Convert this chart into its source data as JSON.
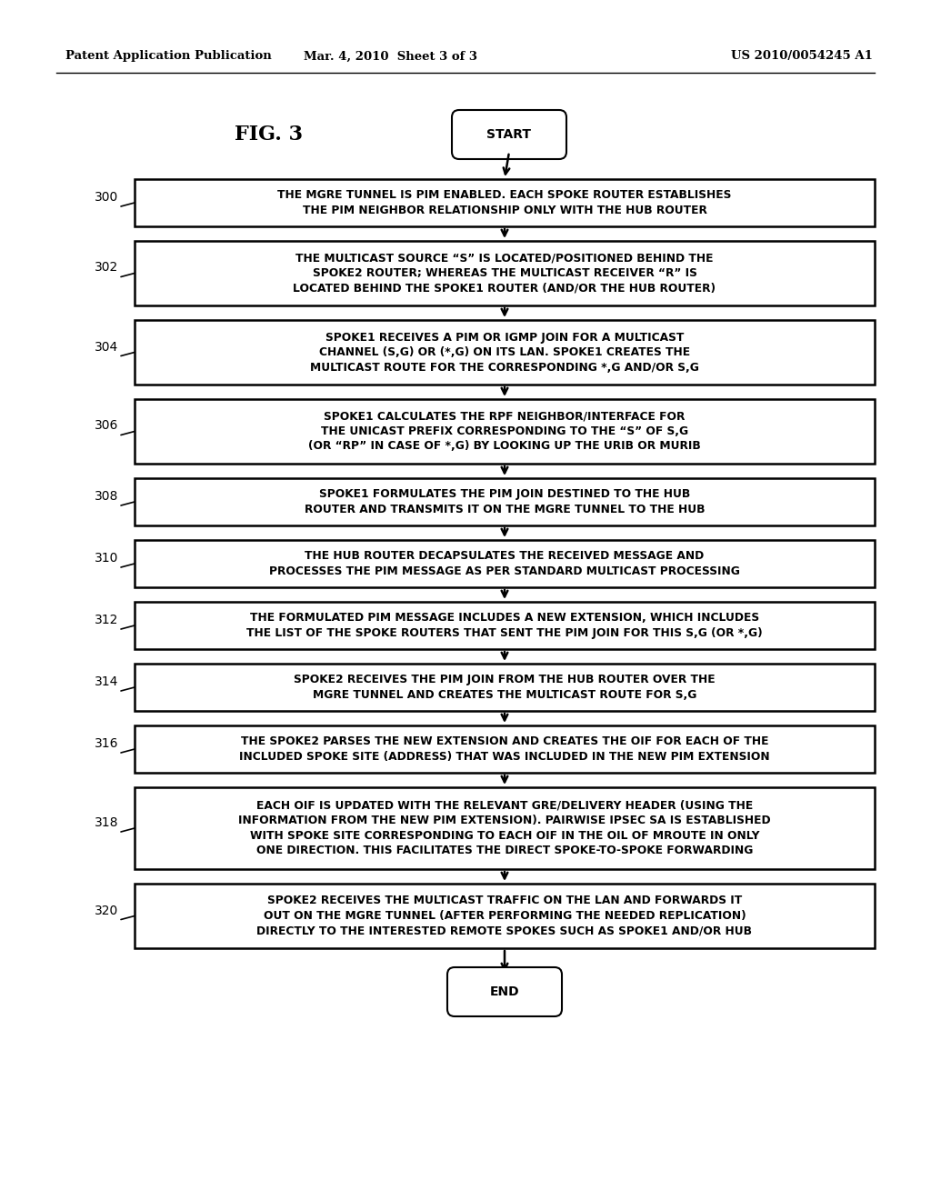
{
  "header_left": "Patent Application Publication",
  "header_mid": "Mar. 4, 2010  Sheet 3 of 3",
  "header_right": "US 2010/0054245 A1",
  "fig_label": "FIG. 3",
  "start_label": "START",
  "end_label": "END",
  "background_color": "#ffffff",
  "box_facecolor": "#ffffff",
  "box_edgecolor": "#000000",
  "text_color": "#000000",
  "steps": [
    {
      "number": "300",
      "text": "THE MGRE TUNNEL IS PIM ENABLED. EACH SPOKE ROUTER ESTABLISHES\nTHE PIM NEIGHBOR RELATIONSHIP ONLY WITH THE HUB ROUTER",
      "nlines": 2
    },
    {
      "number": "302",
      "text": "THE MULTICAST SOURCE “S” IS LOCATED/POSITIONED BEHIND THE\nSPOKE2 ROUTER; WHEREAS THE MULTICAST RECEIVER “R” IS\nLOCATED BEHIND THE SPOKE1 ROUTER (AND/OR THE HUB ROUTER)",
      "nlines": 3
    },
    {
      "number": "304",
      "text": "SPOKE1 RECEIVES A PIM OR IGMP JOIN FOR A MULTICAST\nCHANNEL (S,G) OR (*,G) ON ITS LAN. SPOKE1 CREATES THE\nMULTICAST ROUTE FOR THE CORRESPONDING *,G AND/OR S,G",
      "nlines": 3
    },
    {
      "number": "306",
      "text": "SPOKE1 CALCULATES THE RPF NEIGHBOR/INTERFACE FOR\nTHE UNICAST PREFIX CORRESPONDING TO THE “S” OF S,G\n(OR “RP” IN CASE OF *,G) BY LOOKING UP THE URIB OR MURIB",
      "nlines": 3
    },
    {
      "number": "308",
      "text": "SPOKE1 FORMULATES THE PIM JOIN DESTINED TO THE HUB\nROUTER AND TRANSMITS IT ON THE MGRE TUNNEL TO THE HUB",
      "nlines": 2
    },
    {
      "number": "310",
      "text": "THE HUB ROUTER DECAPSULATES THE RECEIVED MESSAGE AND\nPROCESSES THE PIM MESSAGE AS PER STANDARD MULTICAST PROCESSING",
      "nlines": 2
    },
    {
      "number": "312",
      "text": "THE FORMULATED PIM MESSAGE INCLUDES A NEW EXTENSION, WHICH INCLUDES\nTHE LIST OF THE SPOKE ROUTERS THAT SENT THE PIM JOIN FOR THIS S,G (OR *,G)",
      "nlines": 2
    },
    {
      "number": "314",
      "text": "SPOKE2 RECEIVES THE PIM JOIN FROM THE HUB ROUTER OVER THE\nMGRE TUNNEL AND CREATES THE MULTICAST ROUTE FOR S,G",
      "nlines": 2
    },
    {
      "number": "316",
      "text": "THE SPOKE2 PARSES THE NEW EXTENSION AND CREATES THE OIF FOR EACH OF THE\nINCLUDED SPOKE SITE (ADDRESS) THAT WAS INCLUDED IN THE NEW PIM EXTENSION",
      "nlines": 2
    },
    {
      "number": "318",
      "text": "EACH OIF IS UPDATED WITH THE RELEVANT GRE/DELIVERY HEADER (USING THE\nINFORMATION FROM THE NEW PIM EXTENSION). PAIRWISE IPSEC SA IS ESTABLISHED\nWITH SPOKE SITE CORRESPONDING TO EACH OIF IN THE OIL OF MROUTE IN ONLY\nONE DIRECTION. THIS FACILITATES THE DIRECT SPOKE-TO-SPOKE FORWARDING",
      "nlines": 4
    },
    {
      "number": "320",
      "text": "SPOKE2 RECEIVES THE MULTICAST TRAFFIC ON THE LAN AND FORWARDS IT\nOUT ON THE MGRE TUNNEL (AFTER PERFORMING THE NEEDED REPLICATION)\nDIRECTLY TO THE INTERESTED REMOTE SPOKES SUCH AS SPOKE1 AND/OR HUB",
      "nlines": 3
    }
  ]
}
